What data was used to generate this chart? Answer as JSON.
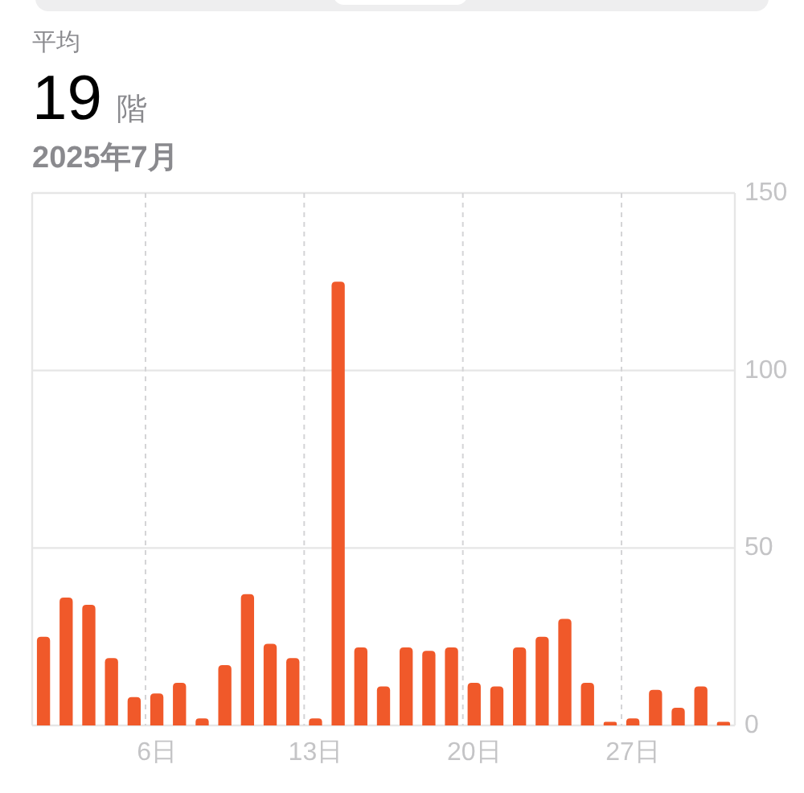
{
  "chart_data": {
    "type": "bar",
    "title": "平均",
    "subtitle": "2025年7月",
    "annotations": [
      "19",
      "階"
    ],
    "categories": [
      null,
      null,
      null,
      null,
      null,
      "6日",
      null,
      null,
      null,
      null,
      null,
      null,
      "13日",
      null,
      null,
      null,
      null,
      null,
      null,
      "20日",
      null,
      null,
      null,
      null,
      null,
      null,
      "27日",
      null,
      null,
      null,
      null
    ],
    "series": [
      {
        "color": "#f0592a",
        "values": [
          25,
          36,
          34,
          19,
          8,
          9,
          12,
          2,
          17,
          37,
          23,
          19,
          2,
          125,
          22,
          11,
          22,
          21,
          22,
          12,
          11,
          22,
          25,
          30,
          12,
          1,
          2,
          10,
          5,
          11,
          1
        ]
      }
    ],
    "ylim": [
      0,
      150
    ],
    "yticks": [
      0,
      50,
      100,
      150
    ],
    "grid": true
  }
}
